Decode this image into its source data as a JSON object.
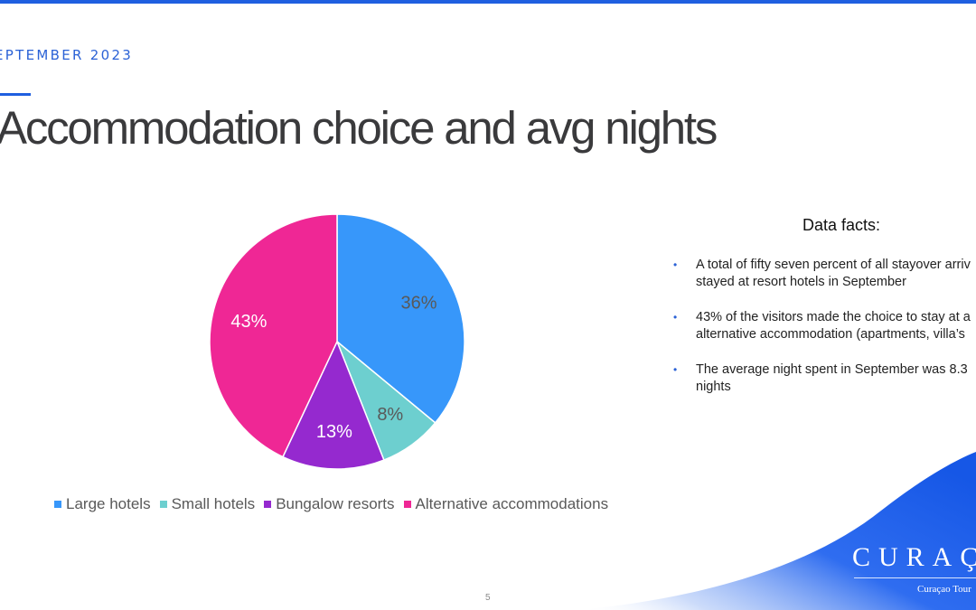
{
  "slide": {
    "eyebrow": "EPTEMBER 2023",
    "title": "Accommodation choice and avg nights",
    "page_number": "5"
  },
  "facts": {
    "heading": "Data facts:",
    "items": [
      "A total of fifty seven percent of all stayover arriv\nstayed at resort hotels in September",
      "43% of the visitors made the choice to stay at a\nalternative accommodation (apartments, villa’s",
      "The average night spent in September was 8.3\nnights"
    ]
  },
  "logo": {
    "wordmark": "CURAÇA",
    "tagline": "Curaçao Tour"
  },
  "colors": {
    "accent": "#1f5fe0",
    "wave_start": "#1657e6",
    "wave_end": "#ffffff"
  },
  "chart_data": {
    "type": "pie",
    "categories": [
      "Large hotels",
      "Small hotels",
      "Bungalow resorts",
      "Alternative accommodations"
    ],
    "values": [
      36,
      8,
      13,
      43
    ],
    "data_labels": [
      "36%",
      "8%",
      "13%",
      "43%"
    ],
    "colors": [
      "#3797fa",
      "#6dcfcf",
      "#9529cf",
      "#ef2795"
    ],
    "label_colors": [
      "#595959",
      "#595959",
      "#ffffff",
      "#ffffff"
    ],
    "legend_position": "bottom",
    "start_angle": "12 o'clock",
    "direction": "clockwise"
  }
}
